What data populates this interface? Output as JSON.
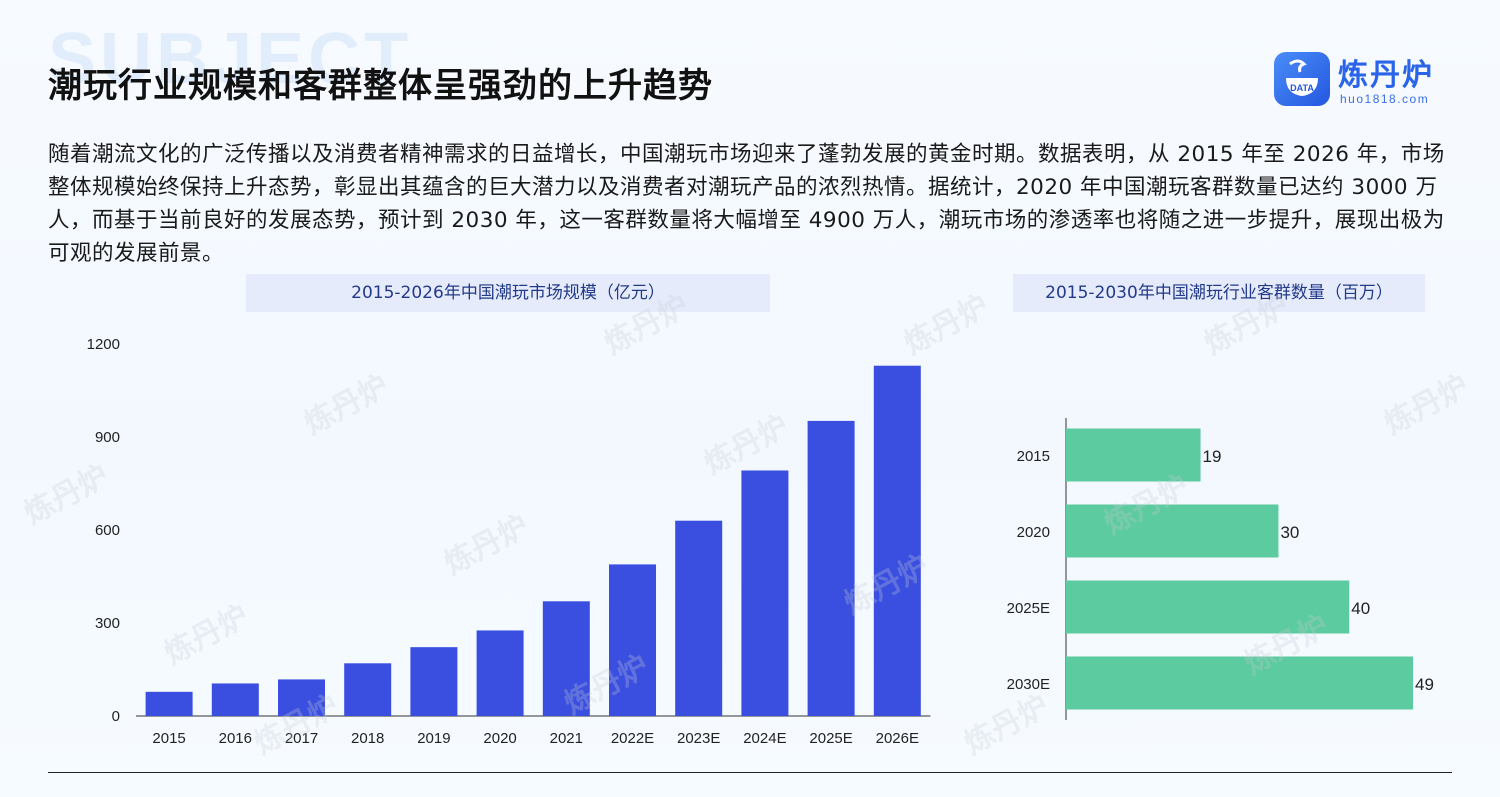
{
  "header": {
    "bg_word": "SUBJECT",
    "title": "潮玩行业规模和客群整体呈强劲的上升趋势"
  },
  "logo": {
    "mark_text": "DATA",
    "name": "炼丹炉",
    "url": "huo1818.com"
  },
  "description": "随着潮流文化的广泛传播以及消费者精神需求的日益增长，中国潮玩市场迎来了蓬勃发展的黄金时期。数据表明，从 2015 年至 2026 年，市场整体规模始终保持上升态势，彰显出其蕴含的巨大潜力以及消费者对潮玩产品的浓烈热情。据统计，2020 年中国潮玩客群数量已达约 3000 万人，而基于当前良好的发展态势，预计到 2030 年，这一客群数量将大幅增至 4900 万人，潮玩市场的渗透率也将随之进一步提升，展现出极为可观的发展前景。",
  "colors": {
    "bar_blue": "#3a4fe0",
    "bar_green": "#5ccb9f",
    "title_bg": "#e5ebfb",
    "title_text": "#233a8a"
  },
  "chart_data": [
    {
      "type": "bar",
      "title": "2015-2026年中国潮玩市场规模（亿元）",
      "categories": [
        "2015",
        "2016",
        "2017",
        "2018",
        "2019",
        "2020",
        "2021",
        "2022E",
        "2023E",
        "2024E",
        "2025E",
        "2026E"
      ],
      "values": [
        78,
        105,
        118,
        170,
        222,
        276,
        370,
        489,
        630,
        792,
        952,
        1130
      ],
      "ylim": [
        0,
        1200
      ],
      "yticks": [
        0,
        300,
        600,
        900,
        1200
      ],
      "grid": false,
      "xlabel": "",
      "ylabel": ""
    },
    {
      "type": "bar",
      "orientation": "horizontal",
      "title": "2015-2030年中国潮玩行业客群数量（百万）",
      "categories": [
        "2015",
        "2020",
        "2025E",
        "2030E"
      ],
      "values": [
        19,
        30,
        40,
        49
      ],
      "data_labels": [
        "19",
        "30",
        "40",
        "49"
      ],
      "xlim": [
        0,
        49
      ],
      "grid": false
    }
  ]
}
